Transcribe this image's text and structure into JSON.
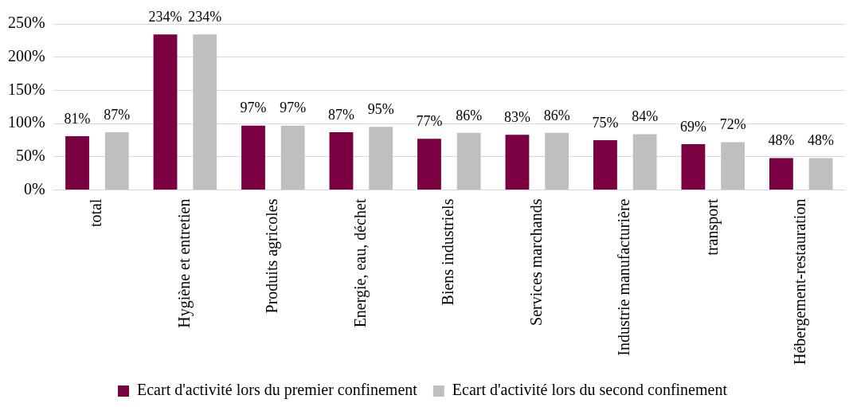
{
  "chart_data": {
    "type": "bar",
    "categories": [
      "total",
      "Hygiène et entretien",
      "Produits agricoles",
      "Energie, eau, déchet",
      "Biens industriels",
      "Services marchands",
      "Industrie manufacturière",
      "transport",
      "Hébergement-restauration"
    ],
    "series": [
      {
        "name": "Ecart d'activité lors du premier confinement",
        "color": "#7b0041",
        "values": [
          81,
          234,
          97,
          87,
          77,
          83,
          75,
          69,
          48
        ],
        "value_labels": [
          "81%",
          "234%",
          "97%",
          "87%",
          "77%",
          "83%",
          "75%",
          "69%",
          "48%"
        ]
      },
      {
        "name": "Ecart d'activité lors du second confinement",
        "color": "#bfbfbf",
        "values": [
          87,
          234,
          97,
          95,
          86,
          86,
          84,
          72,
          48
        ],
        "value_labels": [
          "87%",
          "234%",
          "97%",
          "95%",
          "86%",
          "86%",
          "84%",
          "72%",
          "48%"
        ]
      }
    ],
    "ylim": [
      0,
      250
    ],
    "yticks": [
      {
        "value": 0,
        "label": "0%"
      },
      {
        "value": 50,
        "label": "50%"
      },
      {
        "value": 100,
        "label": "100%"
      },
      {
        "value": 150,
        "label": "150%"
      },
      {
        "value": 200,
        "label": "200%"
      },
      {
        "value": 250,
        "label": "250%"
      }
    ],
    "grid": "y",
    "legend": "bottom"
  }
}
